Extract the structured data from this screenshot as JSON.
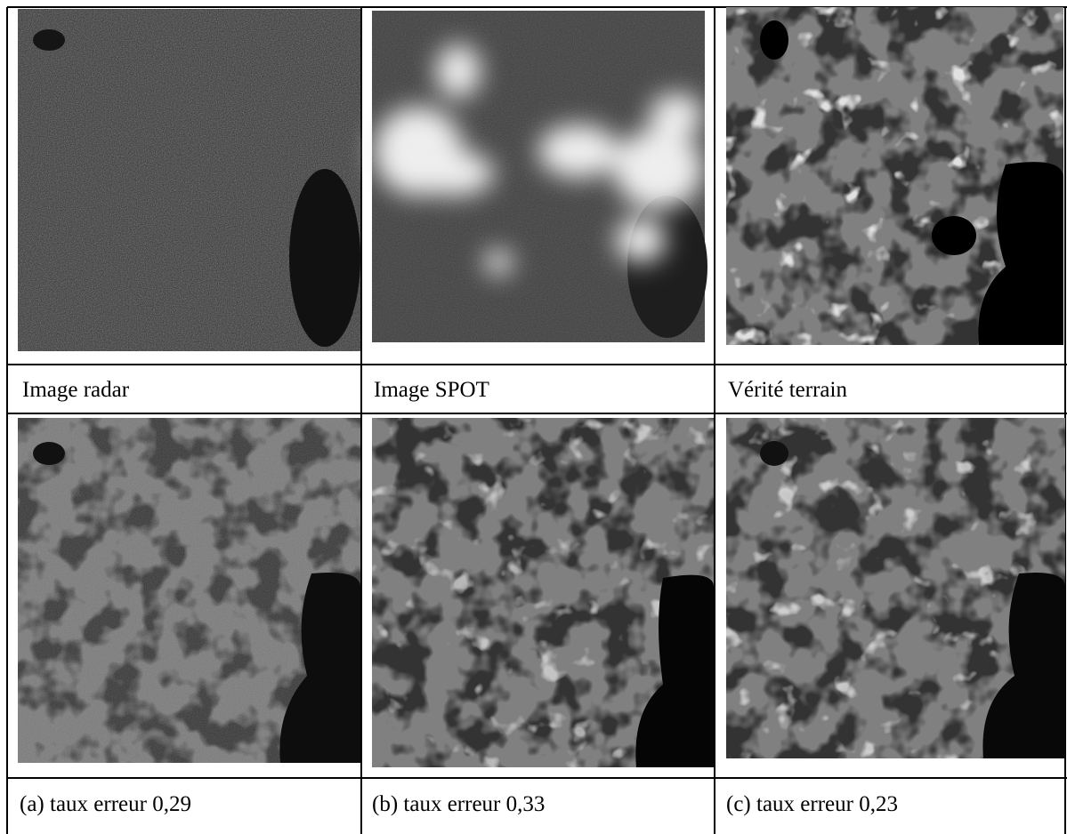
{
  "rows": [
    [
      "Image radar",
      "Image SPOT",
      "Vérité terrain"
    ],
    [
      "(a) taux erreur 0,29",
      "(b) taux erreur 0,33",
      "(c) taux erreur 0,23"
    ]
  ]
}
